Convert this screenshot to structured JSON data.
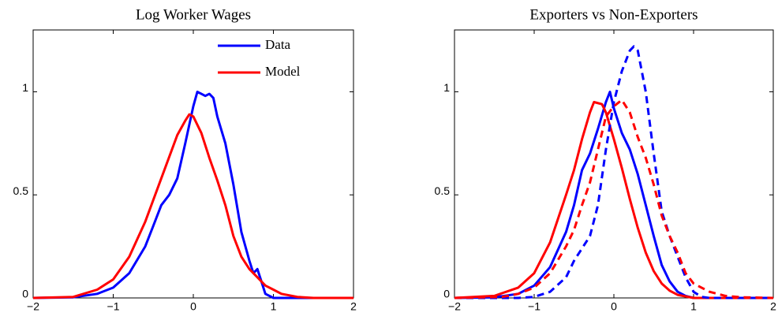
{
  "chart_data": [
    {
      "type": "line",
      "title": "Log Worker Wages",
      "xlim": [
        -2,
        2
      ],
      "ylim": [
        0,
        1.3
      ],
      "xticks": [
        {
          "value": -2,
          "label": "−2"
        },
        {
          "value": -1,
          "label": "−1"
        },
        0,
        1,
        2
      ],
      "yticks": [
        0,
        0.5,
        1
      ],
      "legend": "upper right",
      "series": [
        {
          "name": "Data",
          "color": "#0000ff",
          "dashed": false,
          "x": [
            -2,
            -1.5,
            -1.2,
            -1,
            -0.8,
            -0.6,
            -0.5,
            -0.4,
            -0.3,
            -0.2,
            -0.1,
            0,
            0.05,
            0.1,
            0.15,
            0.2,
            0.25,
            0.3,
            0.4,
            0.5,
            0.6,
            0.7,
            0.75,
            0.8,
            0.85,
            0.9,
            1,
            2
          ],
          "values": [
            0,
            0.003,
            0.02,
            0.05,
            0.12,
            0.25,
            0.35,
            0.45,
            0.5,
            0.58,
            0.75,
            0.93,
            1,
            0.99,
            0.98,
            0.99,
            0.97,
            0.88,
            0.75,
            0.55,
            0.32,
            0.18,
            0.12,
            0.14,
            0.08,
            0.02,
            0,
            0
          ]
        },
        {
          "name": "Model",
          "color": "#ff0000",
          "dashed": false,
          "x": [
            -2,
            -1.5,
            -1.2,
            -1,
            -0.8,
            -0.6,
            -0.4,
            -0.2,
            -0.1,
            -0.05,
            0,
            0.1,
            0.2,
            0.3,
            0.4,
            0.5,
            0.6,
            0.7,
            0.8,
            0.9,
            1,
            1.1,
            1.3,
            1.5,
            2
          ],
          "values": [
            0,
            0.005,
            0.04,
            0.09,
            0.2,
            0.37,
            0.58,
            0.79,
            0.86,
            0.89,
            0.88,
            0.8,
            0.68,
            0.57,
            0.45,
            0.3,
            0.2,
            0.14,
            0.1,
            0.06,
            0.04,
            0.02,
            0.005,
            0,
            0
          ]
        }
      ]
    },
    {
      "type": "line",
      "title": "Exporters vs Non-Exporters",
      "xlim": [
        -2,
        2
      ],
      "ylim": [
        0,
        1.3
      ],
      "xticks": [
        {
          "value": -2,
          "label": "−2"
        },
        {
          "value": -1,
          "label": "−1"
        },
        0,
        1,
        2
      ],
      "yticks": [
        0,
        0.5,
        1
      ],
      "series": [
        {
          "color": "#0000ff",
          "dashed": false,
          "x": [
            -2,
            -1.5,
            -1.2,
            -1,
            -0.8,
            -0.6,
            -0.5,
            -0.4,
            -0.3,
            -0.2,
            -0.1,
            -0.05,
            0,
            0.1,
            0.2,
            0.3,
            0.4,
            0.5,
            0.6,
            0.7,
            0.8,
            0.9,
            1,
            2
          ],
          "values": [
            0,
            0.003,
            0.02,
            0.06,
            0.15,
            0.32,
            0.45,
            0.62,
            0.7,
            0.82,
            0.95,
            1,
            0.92,
            0.8,
            0.72,
            0.6,
            0.45,
            0.3,
            0.16,
            0.08,
            0.03,
            0.01,
            0,
            0
          ]
        },
        {
          "color": "#ff0000",
          "dashed": false,
          "x": [
            -2,
            -1.5,
            -1.2,
            -1,
            -0.8,
            -0.6,
            -0.5,
            -0.4,
            -0.3,
            -0.25,
            -0.15,
            -0.1,
            0,
            0.1,
            0.2,
            0.3,
            0.4,
            0.5,
            0.6,
            0.7,
            0.8,
            1,
            2
          ],
          "values": [
            0,
            0.01,
            0.05,
            0.12,
            0.27,
            0.5,
            0.62,
            0.77,
            0.9,
            0.95,
            0.94,
            0.9,
            0.77,
            0.63,
            0.48,
            0.34,
            0.22,
            0.13,
            0.07,
            0.035,
            0.015,
            0,
            0
          ]
        },
        {
          "color": "#0000ff",
          "dashed": true,
          "x": [
            -2,
            -1.2,
            -1,
            -0.8,
            -0.6,
            -0.5,
            -0.4,
            -0.3,
            -0.2,
            -0.1,
            0,
            0.1,
            0.2,
            0.25,
            0.3,
            0.4,
            0.5,
            0.6,
            0.7,
            0.8,
            0.9,
            1,
            1.1,
            1.2,
            2
          ],
          "values": [
            0,
            0,
            0.005,
            0.03,
            0.1,
            0.18,
            0.24,
            0.3,
            0.45,
            0.72,
            0.95,
            1.1,
            1.2,
            1.22,
            1.2,
            1,
            0.7,
            0.42,
            0.3,
            0.2,
            0.1,
            0.03,
            0.005,
            0,
            0
          ]
        },
        {
          "color": "#ff0000",
          "dashed": true,
          "x": [
            -2,
            -1.4,
            -1.2,
            -1,
            -0.8,
            -0.6,
            -0.5,
            -0.4,
            -0.3,
            -0.2,
            -0.1,
            0,
            0.1,
            0.2,
            0.3,
            0.4,
            0.5,
            0.6,
            0.7,
            0.8,
            0.9,
            1,
            1.2,
            1.4,
            1.6,
            2
          ],
          "values": [
            0,
            0.005,
            0.02,
            0.05,
            0.12,
            0.25,
            0.33,
            0.45,
            0.56,
            0.72,
            0.88,
            0.93,
            0.96,
            0.9,
            0.78,
            0.68,
            0.55,
            0.4,
            0.3,
            0.22,
            0.12,
            0.07,
            0.03,
            0.01,
            0.003,
            0
          ]
        }
      ]
    }
  ]
}
